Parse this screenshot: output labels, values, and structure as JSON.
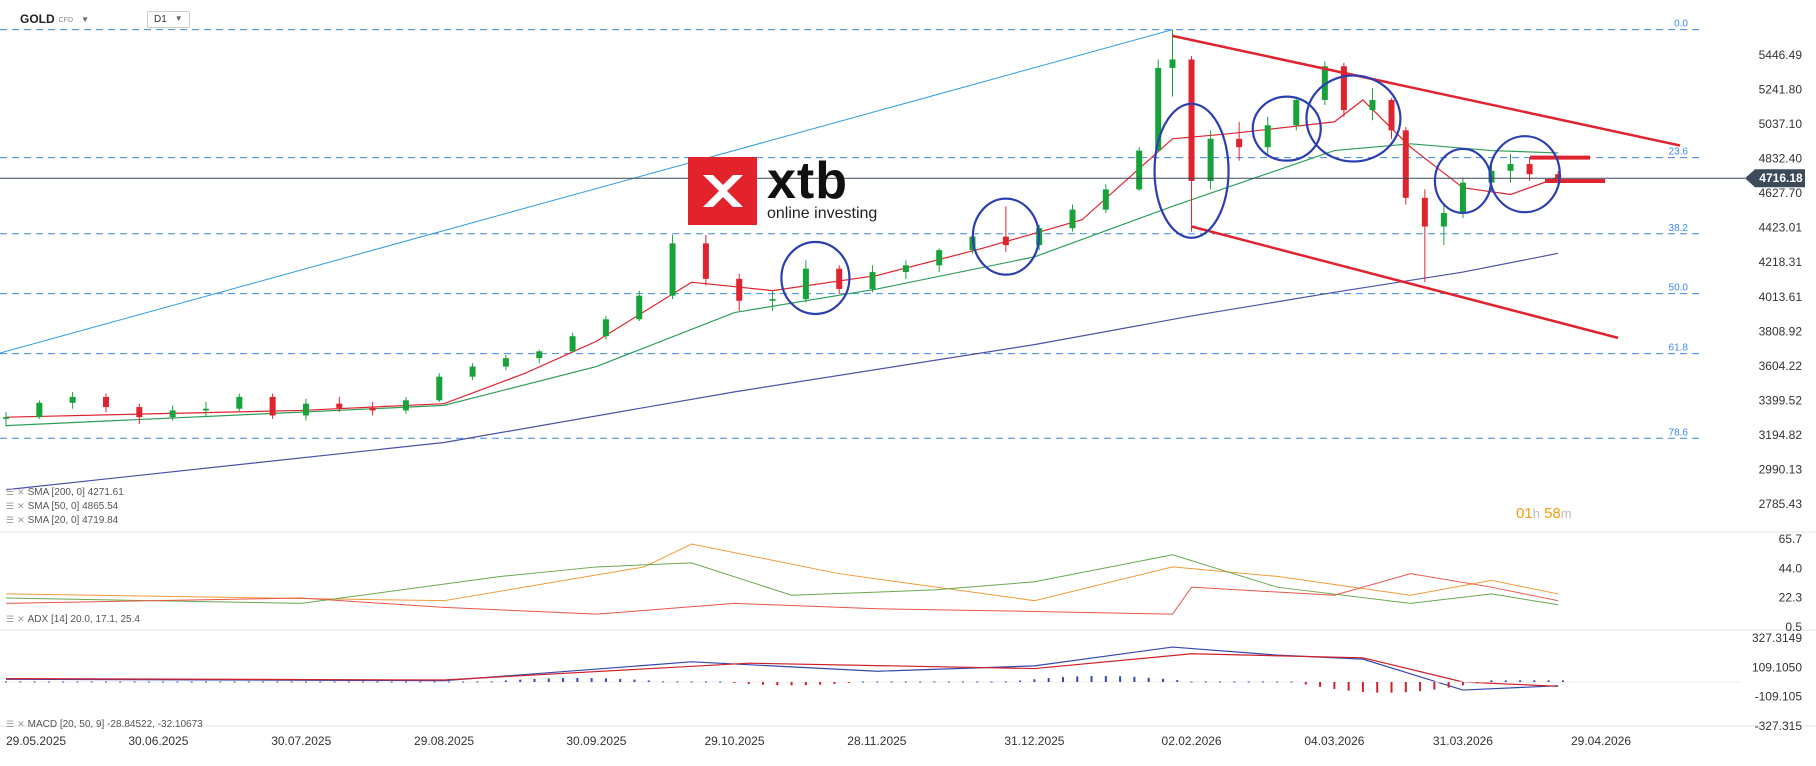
{
  "header": {
    "symbol": "GOLD",
    "symbol_sub": "CFD",
    "timeframe": "D1"
  },
  "logo": {
    "brand": "xtb",
    "tagline": "online investing"
  },
  "countdown": {
    "hours": "01",
    "h_unit": "h",
    "minutes": "58",
    "m_unit": "m"
  },
  "indicators": {
    "sma200": "SMA [200, 0] 4271.61",
    "sma50": "SMA [50, 0] 4865.54",
    "sma20": "SMA [20, 0] 4719.84",
    "adx": "ADX [14] 20.0, 17.1, 25.4",
    "macd": "MACD [20, 50, 9] -28.84522, -32.10673"
  },
  "colors": {
    "candle_up": "#18a23a",
    "candle_down": "#e0242f",
    "sma20": "#e0242f",
    "sma50": "#2e9e5b",
    "sma200": "#4a52a8",
    "fib": "#3b8de8",
    "channel": "#e0242f",
    "circle": "#2c3fb0",
    "price_tag": "#3c4a5a"
  },
  "chart_data": {
    "type": "candlestick",
    "price_axis": {
      "ticks": [
        "5446.49",
        "5241.80",
        "5037.10",
        "4832.40",
        "4627.70",
        "4423.01",
        "4218.31",
        "4013.61",
        "3808.92",
        "3604.22",
        "3399.52",
        "3194.82",
        "2990.13",
        "2785.43"
      ],
      "current_price": "4716.18"
    },
    "adx_axis": {
      "ticks": [
        "65.7",
        "44.0",
        "22.3",
        "0.5"
      ]
    },
    "macd_axis": {
      "ticks": [
        "327.3149",
        "109.1050",
        "-109.105",
        "-327.315"
      ]
    },
    "x_axis": {
      "ticks": [
        "29.05.2025",
        "30.06.2025",
        "30.07.2025",
        "29.08.2025",
        "30.09.2025",
        "29.10.2025",
        "28.11.2025",
        "31.12.2025",
        "02.02.2026",
        "04.03.2026",
        "31.03.2026",
        "29.04.2026"
      ]
    },
    "fibonacci": [
      {
        "label": "0.0",
        "price": 5597
      },
      {
        "label": "23.6",
        "price": 4838
      },
      {
        "label": "38.2",
        "price": 4387
      },
      {
        "label": "50.0",
        "price": 4032
      },
      {
        "label": "61.8",
        "price": 3677
      },
      {
        "label": "78.6",
        "price": 3175
      }
    ],
    "ohlc": [
      {
        "d": "2025-05-29",
        "o": 3290,
        "h": 3330,
        "l": 3245,
        "c": 3300
      },
      {
        "d": "2025-06-05",
        "o": 3300,
        "h": 3400,
        "l": 3290,
        "c": 3385
      },
      {
        "d": "2025-06-12",
        "o": 3385,
        "h": 3450,
        "l": 3350,
        "c": 3420
      },
      {
        "d": "2025-06-19",
        "o": 3420,
        "h": 3440,
        "l": 3330,
        "c": 3360
      },
      {
        "d": "2025-06-26",
        "o": 3360,
        "h": 3380,
        "l": 3260,
        "c": 3300
      },
      {
        "d": "2025-07-03",
        "o": 3300,
        "h": 3370,
        "l": 3280,
        "c": 3340
      },
      {
        "d": "2025-07-10",
        "o": 3340,
        "h": 3390,
        "l": 3300,
        "c": 3350
      },
      {
        "d": "2025-07-17",
        "o": 3350,
        "h": 3440,
        "l": 3330,
        "c": 3420
      },
      {
        "d": "2025-07-24",
        "o": 3420,
        "h": 3440,
        "l": 3290,
        "c": 3310
      },
      {
        "d": "2025-07-31",
        "o": 3310,
        "h": 3410,
        "l": 3280,
        "c": 3380
      },
      {
        "d": "2025-08-07",
        "o": 3380,
        "h": 3420,
        "l": 3330,
        "c": 3355
      },
      {
        "d": "2025-08-14",
        "o": 3355,
        "h": 3390,
        "l": 3310,
        "c": 3340
      },
      {
        "d": "2025-08-21",
        "o": 3340,
        "h": 3420,
        "l": 3320,
        "c": 3400
      },
      {
        "d": "2025-08-28",
        "o": 3400,
        "h": 3560,
        "l": 3390,
        "c": 3540
      },
      {
        "d": "2025-09-04",
        "o": 3540,
        "h": 3620,
        "l": 3520,
        "c": 3600
      },
      {
        "d": "2025-09-11",
        "o": 3600,
        "h": 3670,
        "l": 3580,
        "c": 3650
      },
      {
        "d": "2025-09-18",
        "o": 3650,
        "h": 3700,
        "l": 3620,
        "c": 3690
      },
      {
        "d": "2025-09-25",
        "o": 3690,
        "h": 3800,
        "l": 3680,
        "c": 3780
      },
      {
        "d": "2025-10-02",
        "o": 3780,
        "h": 3900,
        "l": 3760,
        "c": 3880
      },
      {
        "d": "2025-10-09",
        "o": 3880,
        "h": 4050,
        "l": 3870,
        "c": 4020
      },
      {
        "d": "2025-10-16",
        "o": 4020,
        "h": 4380,
        "l": 4000,
        "c": 4330
      },
      {
        "d": "2025-10-23",
        "o": 4330,
        "h": 4380,
        "l": 4080,
        "c": 4120
      },
      {
        "d": "2025-10-30",
        "o": 4120,
        "h": 4150,
        "l": 3930,
        "c": 3990
      },
      {
        "d": "2025-11-06",
        "o": 3990,
        "h": 4050,
        "l": 3930,
        "c": 4000
      },
      {
        "d": "2025-11-13",
        "o": 4000,
        "h": 4230,
        "l": 3980,
        "c": 4180
      },
      {
        "d": "2025-11-20",
        "o": 4180,
        "h": 4200,
        "l": 4030,
        "c": 4060
      },
      {
        "d": "2025-11-27",
        "o": 4060,
        "h": 4200,
        "l": 4040,
        "c": 4160
      },
      {
        "d": "2025-12-04",
        "o": 4160,
        "h": 4230,
        "l": 4120,
        "c": 4200
      },
      {
        "d": "2025-12-11",
        "o": 4200,
        "h": 4300,
        "l": 4160,
        "c": 4290
      },
      {
        "d": "2025-12-18",
        "o": 4290,
        "h": 4400,
        "l": 4270,
        "c": 4370
      },
      {
        "d": "2025-12-25",
        "o": 4370,
        "h": 4550,
        "l": 4280,
        "c": 4320
      },
      {
        "d": "2026-01-01",
        "o": 4320,
        "h": 4440,
        "l": 4290,
        "c": 4420
      },
      {
        "d": "2026-01-08",
        "o": 4420,
        "h": 4560,
        "l": 4400,
        "c": 4530
      },
      {
        "d": "2026-01-15",
        "o": 4530,
        "h": 4680,
        "l": 4510,
        "c": 4650
      },
      {
        "d": "2026-01-22",
        "o": 4650,
        "h": 4900,
        "l": 4640,
        "c": 4880
      },
      {
        "d": "2026-01-26",
        "o": 4880,
        "h": 5420,
        "l": 4870,
        "c": 5370
      },
      {
        "d": "2026-01-29",
        "o": 5370,
        "h": 5597,
        "l": 5200,
        "c": 5420
      },
      {
        "d": "2026-02-02",
        "o": 5420,
        "h": 5440,
        "l": 4400,
        "c": 4700
      },
      {
        "d": "2026-02-06",
        "o": 4700,
        "h": 5000,
        "l": 4650,
        "c": 4950
      },
      {
        "d": "2026-02-12",
        "o": 4950,
        "h": 5050,
        "l": 4820,
        "c": 4900
      },
      {
        "d": "2026-02-18",
        "o": 4900,
        "h": 5080,
        "l": 4850,
        "c": 5030
      },
      {
        "d": "2026-02-24",
        "o": 5030,
        "h": 5200,
        "l": 5000,
        "c": 5180
      },
      {
        "d": "2026-03-02",
        "o": 5180,
        "h": 5410,
        "l": 5150,
        "c": 5380
      },
      {
        "d": "2026-03-06",
        "o": 5380,
        "h": 5400,
        "l": 5080,
        "c": 5120
      },
      {
        "d": "2026-03-12",
        "o": 5120,
        "h": 5250,
        "l": 5060,
        "c": 5180
      },
      {
        "d": "2026-03-16",
        "o": 5180,
        "h": 5190,
        "l": 4950,
        "c": 5000
      },
      {
        "d": "2026-03-19",
        "o": 5000,
        "h": 5020,
        "l": 4560,
        "c": 4600
      },
      {
        "d": "2026-03-23",
        "o": 4600,
        "h": 4650,
        "l": 4100,
        "c": 4430
      },
      {
        "d": "2026-03-27",
        "o": 4430,
        "h": 4560,
        "l": 4320,
        "c": 4510
      },
      {
        "d": "2026-03-31",
        "o": 4510,
        "h": 4720,
        "l": 4480,
        "c": 4690
      },
      {
        "d": "2026-04-06",
        "o": 4690,
        "h": 4820,
        "l": 4640,
        "c": 4760
      },
      {
        "d": "2026-04-10",
        "o": 4760,
        "h": 4860,
        "l": 4690,
        "c": 4800
      },
      {
        "d": "2026-04-14",
        "o": 4800,
        "h": 4840,
        "l": 4700,
        "c": 4740
      },
      {
        "d": "2026-04-20",
        "o": 4740,
        "h": 4760,
        "l": 4690,
        "c": 4716
      }
    ]
  }
}
